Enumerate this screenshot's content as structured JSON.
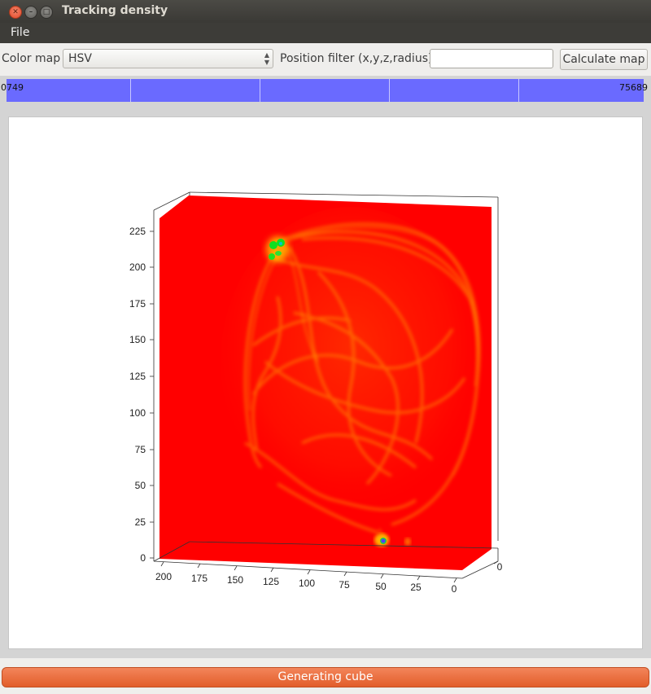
{
  "window": {
    "title": "Tracking density"
  },
  "menu": {
    "file": "File"
  },
  "toolbar": {
    "color_map_label": "Color map",
    "color_map_value": "HSV",
    "position_filter_label": "Position filter (x,y,z,radius)",
    "position_filter_value": "",
    "calculate_button": "Calculate map"
  },
  "colorbar": {
    "min_label": "0749",
    "max_label": "75689",
    "fill_color": "#6a6aff"
  },
  "plot": {
    "z_ticks": [
      "0",
      "25",
      "50",
      "75",
      "100",
      "125",
      "150",
      "175",
      "200",
      "225"
    ],
    "x_ticks": [
      "200",
      "175",
      "150",
      "125",
      "100",
      "75",
      "50",
      "25",
      "0"
    ],
    "y_tick_right": "0",
    "background_color": "#ff0000"
  },
  "status": {
    "progress_label": "Generating cube"
  }
}
